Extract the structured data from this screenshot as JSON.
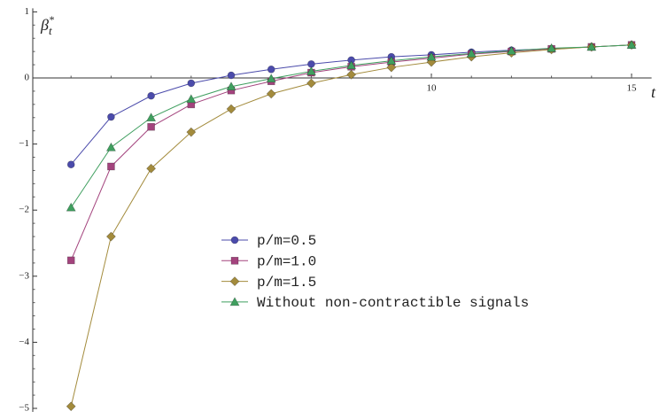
{
  "chart_data": {
    "type": "line",
    "xlabel": "t",
    "ylabel": {
      "base": "β",
      "sup": "*",
      "sub": "t"
    },
    "x": [
      1,
      2,
      3,
      4,
      5,
      6,
      7,
      8,
      9,
      10,
      11,
      12,
      13,
      14,
      15
    ],
    "series": [
      {
        "name": "p/m=0.5",
        "color": "#4b4bab",
        "marker": "circle",
        "values": [
          -1.31,
          -0.59,
          -0.27,
          -0.08,
          0.04,
          0.13,
          0.21,
          0.27,
          0.32,
          0.35,
          0.39,
          0.42,
          0.44,
          0.47,
          0.5
        ]
      },
      {
        "name": "p/m=1.0",
        "color": "#a3437d",
        "marker": "square",
        "values": [
          -2.76,
          -1.34,
          -0.74,
          -0.4,
          -0.19,
          -0.05,
          0.08,
          0.17,
          0.24,
          0.3,
          0.36,
          0.4,
          0.44,
          0.47,
          0.5
        ]
      },
      {
        "name": "p/m=1.5",
        "color": "#a38b3c",
        "marker": "diamond",
        "values": [
          -4.97,
          -2.4,
          -1.37,
          -0.82,
          -0.47,
          -0.24,
          -0.08,
          0.05,
          0.16,
          0.24,
          0.32,
          0.38,
          0.43,
          0.47,
          0.5
        ]
      },
      {
        "name": "Without non-contractible signals",
        "color": "#3f9f5f",
        "marker": "triangle",
        "values": [
          -1.96,
          -1.05,
          -0.6,
          -0.32,
          -0.13,
          -0.01,
          0.1,
          0.19,
          0.26,
          0.32,
          0.37,
          0.41,
          0.45,
          0.47,
          0.5
        ]
      }
    ],
    "xlim": [
      0,
      15.5
    ],
    "ylim": [
      -5,
      1
    ],
    "xticks": [
      10,
      15
    ],
    "yticks": [
      1,
      0,
      {
        "value": -1,
        "label": "−1"
      },
      {
        "value": -2,
        "label": "−2"
      },
      {
        "value": -3,
        "label": "−3"
      },
      {
        "value": -4,
        "label": "−4"
      },
      {
        "value": -5,
        "label": "−5"
      }
    ]
  }
}
